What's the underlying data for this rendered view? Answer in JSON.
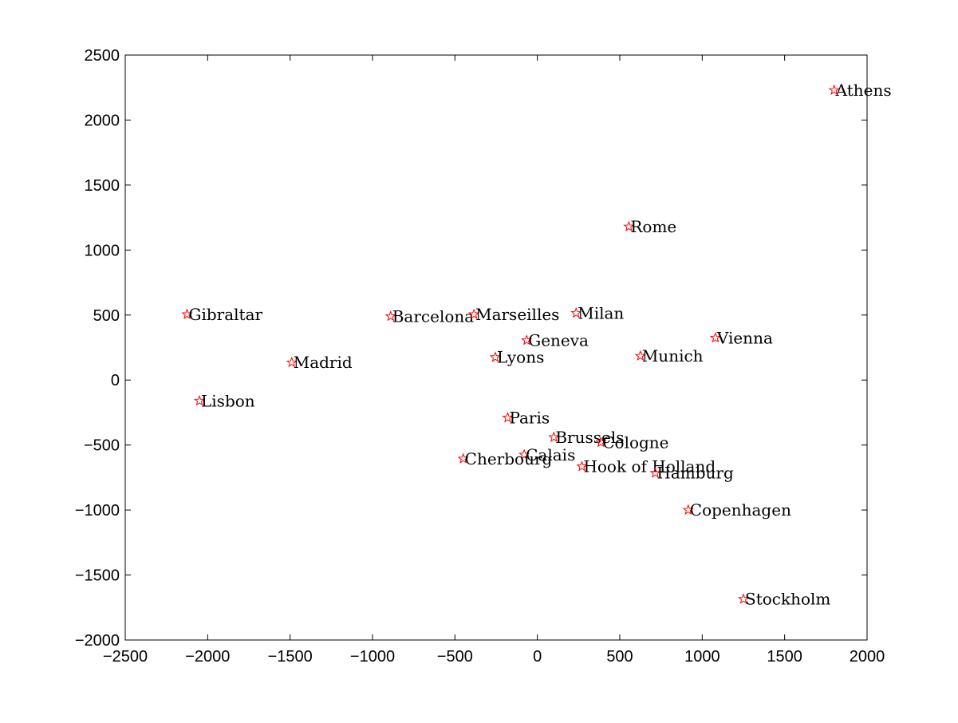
{
  "chart_data": {
    "type": "scatter",
    "title": "",
    "xlabel": "",
    "ylabel": "",
    "xlim": [
      -2500,
      2000
    ],
    "ylim": [
      -2000,
      2500
    ],
    "xticks": [
      -2500,
      -2000,
      -1500,
      -1000,
      -500,
      0,
      500,
      1000,
      1500,
      2000
    ],
    "yticks": [
      -2000,
      -1500,
      -1000,
      -500,
      0,
      500,
      1000,
      1500,
      2000,
      2500
    ],
    "xtick_labels": [
      "−2500",
      "−2000",
      "−1500",
      "−1000",
      "−500",
      "0",
      "500",
      "1000",
      "1500",
      "2000"
    ],
    "ytick_labels": [
      "−2000",
      "−1500",
      "−1000",
      "−500",
      "0",
      "500",
      "1000",
      "1500",
      "2000",
      "2500"
    ],
    "grid": false,
    "marker": "star",
    "marker_color": "#ff0000",
    "points": [
      {
        "label": "Athens",
        "x": 1800,
        "y": 2230
      },
      {
        "label": "Rome",
        "x": 555,
        "y": 1180
      },
      {
        "label": "Gibraltar",
        "x": -2125,
        "y": 505
      },
      {
        "label": "Barcelona",
        "x": -890,
        "y": 490
      },
      {
        "label": "Marseilles",
        "x": -385,
        "y": 505
      },
      {
        "label": "Milan",
        "x": 235,
        "y": 515
      },
      {
        "label": "Geneva",
        "x": -65,
        "y": 305
      },
      {
        "label": "Vienna",
        "x": 1080,
        "y": 325
      },
      {
        "label": "Lyons",
        "x": -255,
        "y": 175
      },
      {
        "label": "Munich",
        "x": 625,
        "y": 185
      },
      {
        "label": "Madrid",
        "x": -1490,
        "y": 135
      },
      {
        "label": "Lisbon",
        "x": -2050,
        "y": -160
      },
      {
        "label": "Paris",
        "x": -180,
        "y": -290
      },
      {
        "label": "Brussels",
        "x": 100,
        "y": -440
      },
      {
        "label": "Cologne",
        "x": 385,
        "y": -480
      },
      {
        "label": "Calais",
        "x": -80,
        "y": -575
      },
      {
        "label": "Cherbourg",
        "x": -450,
        "y": -605
      },
      {
        "label": "Hook of Holland",
        "x": 270,
        "y": -665
      },
      {
        "label": "Hamburg",
        "x": 715,
        "y": -715
      },
      {
        "label": "Copenhagen",
        "x": 915,
        "y": -1000
      },
      {
        "label": "Stockholm",
        "x": 1250,
        "y": -1685
      }
    ]
  }
}
